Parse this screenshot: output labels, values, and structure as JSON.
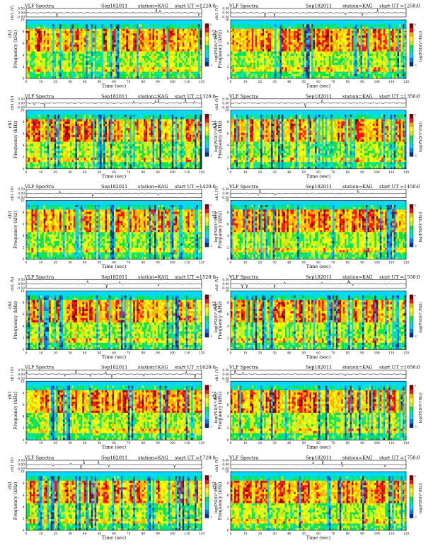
{
  "page": {
    "background": "#ffffff"
  },
  "colormap": [
    "#ffffff",
    "#003090",
    "#0080ff",
    "#00d8ff",
    "#00e8a0",
    "#10e040",
    "#c8f020",
    "#ffff00",
    "#ffb000",
    "#ff1010",
    "#800000"
  ],
  "chart_data": [
    {
      "type": "heatmap",
      "title": "VLF Spectra",
      "date": "Sep182011",
      "station": "station=KAG",
      "start": "start UT =1220:0",
      "ylabel": "Frequency (kHz)",
      "channel_label": "ch1",
      "xlabel": "Time (sec)",
      "x_range": [
        0,
        120
      ],
      "y_range": [
        0,
        10
      ],
      "x_ticks": [
        "0",
        "10",
        "20",
        "30",
        "40",
        "50",
        "60",
        "70",
        "80",
        "90",
        "100",
        "110",
        "120"
      ],
      "y_ticks": [
        "0",
        "2",
        "4",
        "6",
        "8",
        "10"
      ],
      "waveform_label": "ch1 (V)",
      "waveform_ticks": [
        "0.50",
        "0.00",
        "-0.50"
      ],
      "waveform_range": [
        -0.5,
        0.5
      ],
      "colorbar_label": "log(PSD(V²/Hz))",
      "colorbar_ticks": [
        "0",
        "-1"
      ]
    },
    {
      "type": "heatmap",
      "title": "VLF Spectra",
      "date": "Sep182011",
      "station": "station=KAG",
      "start": "start UT =1250:0",
      "ylabel": "Frequency (kHz)",
      "channel_label": "ch1",
      "xlabel": "Time (sec)",
      "x_range": [
        0,
        120
      ],
      "y_range": [
        0,
        10
      ],
      "x_ticks": [
        "0",
        "10",
        "20",
        "30",
        "40",
        "50",
        "60",
        "70",
        "80",
        "90",
        "100",
        "110",
        "120"
      ],
      "y_ticks": [
        "0",
        "2",
        "4",
        "6",
        "8",
        "10"
      ],
      "waveform_label": "ch1 (V)",
      "waveform_ticks": [
        "0.50",
        "0.00",
        "-0.50"
      ],
      "waveform_range": [
        -0.5,
        0.5
      ],
      "colorbar_label": "log(PSD(V²/Hz))",
      "colorbar_ticks": [
        "0",
        "-1"
      ]
    },
    {
      "type": "heatmap",
      "title": "VLF Spectra",
      "date": "Sep182011",
      "station": "station=KAG",
      "start": "start UT =1320:0",
      "ylabel": "Frequency (kHz)",
      "channel_label": "ch1",
      "xlabel": "Time (sec)",
      "x_range": [
        0,
        120
      ],
      "y_range": [
        0,
        10
      ],
      "x_ticks": [
        "0",
        "10",
        "20",
        "30",
        "40",
        "50",
        "60",
        "70",
        "80",
        "90",
        "100",
        "110",
        "120"
      ],
      "y_ticks": [
        "0",
        "2",
        "4",
        "6",
        "8",
        "10"
      ],
      "waveform_label": "ch1 (V)",
      "waveform_ticks": [
        "0.50",
        "0.00",
        "-0.50"
      ],
      "waveform_range": [
        -0.5,
        0.5
      ],
      "colorbar_label": "log(PSD(V²/Hz))",
      "colorbar_ticks": [
        "0",
        "-1"
      ]
    },
    {
      "type": "heatmap",
      "title": "VLF Spectra",
      "date": "Sep182011",
      "station": "station=KAG",
      "start": "start UT =1350:0",
      "ylabel": "Frequency (kHz)",
      "channel_label": "ch1",
      "xlabel": "Time (sec)",
      "x_range": [
        0,
        120
      ],
      "y_range": [
        0,
        10
      ],
      "x_ticks": [
        "0",
        "10",
        "20",
        "30",
        "40",
        "50",
        "60",
        "70",
        "80",
        "90",
        "100",
        "110",
        "120"
      ],
      "y_ticks": [
        "0",
        "2",
        "4",
        "6",
        "8",
        "10"
      ],
      "waveform_label": "ch1 (V)",
      "waveform_ticks": [
        "0.50",
        "0.00",
        "-0.50"
      ],
      "waveform_range": [
        -0.5,
        0.5
      ],
      "colorbar_label": "log(PSD(V²/Hz))",
      "colorbar_ticks": [
        "0",
        "-1"
      ]
    },
    {
      "type": "heatmap",
      "title": "VLF Spectra",
      "date": "Sep182011",
      "station": "station=KAG",
      "start": "start UT =1420:0",
      "ylabel": "Frequency (kHz)",
      "channel_label": "ch1",
      "xlabel": "Time (sec)",
      "x_range": [
        0,
        120
      ],
      "y_range": [
        0,
        10
      ],
      "x_ticks": [
        "0",
        "10",
        "20",
        "30",
        "40",
        "50",
        "60",
        "70",
        "80",
        "90",
        "100",
        "110",
        "120"
      ],
      "y_ticks": [
        "0",
        "2",
        "4",
        "6",
        "8",
        "10"
      ],
      "waveform_label": "ch1 (V)",
      "waveform_ticks": [
        "0.50",
        "0.00",
        "-0.50"
      ],
      "waveform_range": [
        -0.5,
        0.5
      ],
      "colorbar_label": "log(PSD(V²/Hz))",
      "colorbar_ticks": [
        "0",
        "-1"
      ]
    },
    {
      "type": "heatmap",
      "title": "VLF Spectra",
      "date": "Sep182011",
      "station": "station=KAG",
      "start": "start UT =1450:0",
      "ylabel": "Frequency (kHz)",
      "channel_label": "ch1",
      "xlabel": "Time (sec)",
      "x_range": [
        0,
        120
      ],
      "y_range": [
        0,
        10
      ],
      "x_ticks": [
        "0",
        "10",
        "20",
        "30",
        "40",
        "50",
        "60",
        "70",
        "80",
        "90",
        "100",
        "110",
        "120"
      ],
      "y_ticks": [
        "0",
        "2",
        "4",
        "6",
        "8",
        "10"
      ],
      "waveform_label": "ch1 (V)",
      "waveform_ticks": [
        "0.50",
        "0.00",
        "-0.50"
      ],
      "waveform_range": [
        -0.5,
        0.5
      ],
      "colorbar_label": "log(PSD(V²/Hz))",
      "colorbar_ticks": [
        "0",
        "-1"
      ]
    },
    {
      "type": "heatmap",
      "title": "VLF Spectra",
      "date": "Sep182011",
      "station": "station=KAG",
      "start": "start UT =1520:0",
      "ylabel": "Frequency (kHz)",
      "channel_label": "ch1",
      "xlabel": "Time (sec)",
      "x_range": [
        0,
        120
      ],
      "y_range": [
        0,
        10
      ],
      "x_ticks": [
        "0",
        "10",
        "20",
        "30",
        "40",
        "50",
        "60",
        "70",
        "80",
        "90",
        "100",
        "110",
        "120"
      ],
      "y_ticks": [
        "0",
        "2",
        "4",
        "6",
        "8",
        "10"
      ],
      "waveform_label": "ch1 (V)",
      "waveform_ticks": [
        "0.50",
        "0.00",
        "-0.50"
      ],
      "waveform_range": [
        -0.5,
        0.5
      ],
      "colorbar_label": "log(PSD(V²/Hz))",
      "colorbar_ticks": [
        "0",
        "-1"
      ]
    },
    {
      "type": "heatmap",
      "title": "VLF Spectra",
      "date": "Sep182011",
      "station": "station=KAG",
      "start": "start UT =1550:0",
      "ylabel": "Frequency (kHz)",
      "channel_label": "ch1",
      "xlabel": "Time (sec)",
      "x_range": [
        0,
        120
      ],
      "y_range": [
        0,
        10
      ],
      "x_ticks": [
        "0",
        "10",
        "20",
        "30",
        "40",
        "50",
        "60",
        "70",
        "80",
        "90",
        "100",
        "110",
        "120"
      ],
      "y_ticks": [
        "0",
        "2",
        "4",
        "6",
        "8",
        "10"
      ],
      "waveform_label": "ch1 (V)",
      "waveform_ticks": [
        "0.50",
        "0.00",
        "-0.50"
      ],
      "waveform_range": [
        -0.5,
        0.5
      ],
      "colorbar_label": "log(PSD(V²/Hz))",
      "colorbar_ticks": [
        "0",
        "-1"
      ]
    },
    {
      "type": "heatmap",
      "title": "VLF Spectra",
      "date": "Sep182011",
      "station": "station=KAG",
      "start": "start UT =1620:0",
      "ylabel": "Frequency (kHz)",
      "channel_label": "ch1",
      "xlabel": "Time (sec)",
      "x_range": [
        0,
        120
      ],
      "y_range": [
        0,
        10
      ],
      "x_ticks": [
        "0",
        "10",
        "20",
        "30",
        "40",
        "50",
        "60",
        "70",
        "80",
        "90",
        "100",
        "110",
        "120"
      ],
      "y_ticks": [
        "0",
        "2",
        "4",
        "6",
        "8",
        "10"
      ],
      "waveform_label": "ch1 (V)",
      "waveform_ticks": [
        "0.50",
        "0.00",
        "-0.50"
      ],
      "waveform_range": [
        -0.5,
        0.5
      ],
      "colorbar_label": "log(PSD(V²/Hz))",
      "colorbar_ticks": [
        "0",
        "-1"
      ]
    },
    {
      "type": "heatmap",
      "title": "VLF Spectra",
      "date": "Sep182011",
      "station": "station=KAG",
      "start": "start UT =1650:0",
      "ylabel": "Frequency (kHz)",
      "channel_label": "ch1",
      "xlabel": "Time (sec)",
      "x_range": [
        0,
        120
      ],
      "y_range": [
        0,
        10
      ],
      "x_ticks": [
        "0",
        "10",
        "20",
        "30",
        "40",
        "50",
        "60",
        "70",
        "80",
        "90",
        "100",
        "110",
        "120"
      ],
      "y_ticks": [
        "0",
        "2",
        "4",
        "6",
        "8",
        "10"
      ],
      "waveform_label": "ch1 (V)",
      "waveform_ticks": [
        "0.50",
        "0.00",
        "-0.50"
      ],
      "waveform_range": [
        -0.5,
        0.5
      ],
      "colorbar_label": "log(PSD(V²/Hz))",
      "colorbar_ticks": [
        "0",
        "-1"
      ]
    },
    {
      "type": "heatmap",
      "title": "VLF Spectra",
      "date": "Sep182011",
      "station": "station=KAG",
      "start": "start UT =1720:0",
      "ylabel": "Frequency (kHz)",
      "channel_label": "ch1",
      "xlabel": "Time (sec)",
      "x_range": [
        0,
        120
      ],
      "y_range": [
        0,
        10
      ],
      "x_ticks": [
        "0",
        "10",
        "20",
        "30",
        "40",
        "50",
        "60",
        "70",
        "80",
        "90",
        "100",
        "110",
        "120"
      ],
      "y_ticks": [
        "0",
        "2",
        "4",
        "6",
        "8",
        "10"
      ],
      "waveform_label": "ch1 (V)",
      "waveform_ticks": [
        "0.50",
        "0.00",
        "-0.50"
      ],
      "waveform_range": [
        -0.5,
        0.5
      ],
      "colorbar_label": "log(PSD(V²/Hz))",
      "colorbar_ticks": [
        "0",
        "-1"
      ]
    },
    {
      "type": "heatmap",
      "title": "VLF Spectra",
      "date": "Sep182011",
      "station": "station=KAG",
      "start": "start UT =1750:0",
      "ylabel": "Frequency (kHz)",
      "channel_label": "ch1",
      "xlabel": "Time (sec)",
      "x_range": [
        0,
        120
      ],
      "y_range": [
        0,
        10
      ],
      "x_ticks": [
        "0",
        "10",
        "20",
        "30",
        "40",
        "50",
        "60",
        "70",
        "80",
        "90",
        "100",
        "110",
        "120"
      ],
      "y_ticks": [
        "0",
        "2",
        "4",
        "6",
        "8",
        "10"
      ],
      "waveform_label": "ch1 (V)",
      "waveform_ticks": [
        "0.50",
        "0.00",
        "-0.50"
      ],
      "waveform_range": [
        -0.5,
        0.5
      ],
      "colorbar_label": "log(PSD(V²/Hz))",
      "colorbar_ticks": [
        "0",
        "-1"
      ]
    }
  ]
}
